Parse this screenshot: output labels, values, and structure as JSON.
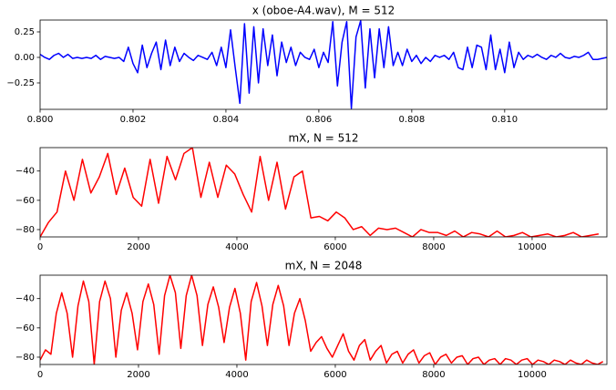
{
  "chart_data": [
    {
      "type": "line",
      "title": "x (oboe-A4.wav), M = 512",
      "color": "#0000ff",
      "xlim": [
        0.8,
        0.8122
      ],
      "ylim": [
        -0.509,
        0.366
      ],
      "xticks": [
        {
          "value": 0.8,
          "label": "0.800"
        },
        {
          "value": 0.802,
          "label": "0.802"
        },
        {
          "value": 0.804,
          "label": "0.804"
        },
        {
          "value": 0.806,
          "label": "0.806"
        },
        {
          "value": 0.808,
          "label": "0.808"
        },
        {
          "value": 0.81,
          "label": "0.810"
        }
      ],
      "yticks": [
        0.25,
        {
          "value": 0,
          "label": "0.00"
        },
        {
          "value": -0.25,
          "label": "−0.25"
        }
      ],
      "x": [
        0.8,
        0.8001,
        0.8002,
        0.8003,
        0.8004,
        0.8005,
        0.8006,
        0.8007,
        0.8008,
        0.8009,
        0.801,
        0.8011,
        0.8012,
        0.8013,
        0.8014,
        0.8015,
        0.8016,
        0.8017,
        0.8018,
        0.8019,
        0.802,
        0.8021,
        0.8022,
        0.8023,
        0.8024,
        0.8025,
        0.8026,
        0.8027,
        0.8028,
        0.8029,
        0.803,
        0.8031,
        0.8032,
        0.8033,
        0.8034,
        0.8035,
        0.8036,
        0.8037,
        0.8038,
        0.8039,
        0.804,
        0.8041,
        0.8042,
        0.8043,
        0.8044,
        0.8045,
        0.8046,
        0.8047,
        0.8048,
        0.8049,
        0.805,
        0.8051,
        0.8052,
        0.8053,
        0.8054,
        0.8055,
        0.8056,
        0.8057,
        0.8058,
        0.8059,
        0.806,
        0.8061,
        0.8062,
        0.8063,
        0.8064,
        0.8065,
        0.8066,
        0.8067,
        0.8068,
        0.8069,
        0.807,
        0.8071,
        0.8072,
        0.8073,
        0.8074,
        0.8075,
        0.8076,
        0.8077,
        0.8078,
        0.8079,
        0.808,
        0.8081,
        0.8082,
        0.8083,
        0.8084,
        0.8085,
        0.8086,
        0.8087,
        0.8088,
        0.8089,
        0.809,
        0.8091,
        0.8092,
        0.8093,
        0.8094,
        0.8095,
        0.8096,
        0.8097,
        0.8098,
        0.8099,
        0.81,
        0.8101,
        0.8102,
        0.8103,
        0.8104,
        0.8105,
        0.8106,
        0.8107,
        0.8108,
        0.8109,
        0.811,
        0.8111,
        0.8112,
        0.8113,
        0.8114,
        0.8115,
        0.8116,
        0.8117,
        0.8118,
        0.8119,
        0.812,
        0.8121,
        0.8122
      ],
      "values": [
        0.03,
        0.0,
        -0.02,
        0.02,
        0.04,
        0.0,
        0.03,
        -0.01,
        0.0,
        -0.01,
        0.0,
        -0.01,
        0.02,
        -0.02,
        0.01,
        0.0,
        -0.01,
        0.0,
        -0.04,
        0.1,
        -0.06,
        -0.15,
        0.12,
        -0.1,
        0.04,
        0.15,
        -0.12,
        0.17,
        -0.08,
        0.1,
        -0.04,
        0.04,
        0.0,
        -0.03,
        0.02,
        0.0,
        -0.02,
        0.05,
        -0.08,
        0.1,
        -0.1,
        0.27,
        -0.1,
        -0.45,
        0.33,
        -0.35,
        0.3,
        -0.25,
        0.28,
        -0.08,
        0.22,
        -0.18,
        0.15,
        -0.05,
        0.1,
        -0.08,
        0.05,
        0.0,
        -0.02,
        0.08,
        -0.1,
        0.05,
        -0.05,
        0.35,
        -0.28,
        0.15,
        0.35,
        -0.5,
        0.2,
        0.36,
        -0.3,
        0.28,
        -0.2,
        0.28,
        -0.1,
        0.3,
        -0.08,
        0.05,
        -0.08,
        0.08,
        -0.04,
        0.02,
        -0.06,
        0.0,
        -0.04,
        0.02,
        0.0,
        0.02,
        -0.02,
        0.05,
        -0.1,
        -0.12,
        0.1,
        -0.1,
        0.12,
        0.1,
        -0.12,
        0.22,
        -0.12,
        0.08,
        -0.15,
        0.15,
        -0.1,
        0.05,
        -0.02,
        0.02,
        0.0,
        0.03,
        0.0,
        -0.02,
        0.02,
        0.0,
        0.04,
        0.0,
        -0.01,
        0.01,
        0.0,
        0.02,
        0.05,
        -0.02,
        -0.02,
        -0.01,
        0.0
      ]
    },
    {
      "type": "line",
      "title": "mX, N = 512",
      "color": "#ff0000",
      "xlim": [
        0,
        11520
      ],
      "ylim": [
        -85,
        -24
      ],
      "xticks": [
        0,
        2000,
        4000,
        6000,
        8000,
        10000
      ],
      "yticks": [
        {
          "value": -40,
          "label": "−40"
        },
        {
          "value": -60,
          "label": "−60"
        },
        {
          "value": -80,
          "label": "−80"
        }
      ],
      "x": [
        0,
        172,
        344,
        516,
        688,
        860,
        1032,
        1204,
        1376,
        1548,
        1720,
        1892,
        2064,
        2236,
        2408,
        2580,
        2752,
        2924,
        3096,
        3268,
        3440,
        3612,
        3784,
        3956,
        4128,
        4300,
        4472,
        4644,
        4816,
        4988,
        5160,
        5332,
        5504,
        5676,
        5848,
        6020,
        6192,
        6364,
        6536,
        6708,
        6880,
        7052,
        7224,
        7396,
        7568,
        7740,
        7912,
        8084,
        8256,
        8428,
        8600,
        8772,
        8944,
        9116,
        9288,
        9460,
        9632,
        9804,
        9976,
        10148,
        10320,
        10492,
        10664,
        10836,
        11008,
        11180,
        11352
      ],
      "values": [
        -85,
        -75,
        -68,
        -40,
        -60,
        -32,
        -55,
        -44,
        -28,
        -56,
        -38,
        -58,
        -64,
        -32,
        -62,
        -30,
        -46,
        -28,
        -24,
        -58,
        -34,
        -58,
        -36,
        -42,
        -56,
        -68,
        -30,
        -60,
        -34,
        -66,
        -44,
        -40,
        -72,
        -71,
        -74,
        -68,
        -72,
        -80,
        -78,
        -84,
        -79,
        -80,
        -79,
        -82,
        -85,
        -80,
        -82,
        -82,
        -84,
        -81,
        -85,
        -82,
        -83,
        -85,
        -81,
        -85,
        -84,
        -82,
        -85,
        -84,
        -83,
        -85,
        -84,
        -82,
        -85,
        -84,
        -83
      ]
    },
    {
      "type": "line",
      "title": "mX, N = 2048",
      "color": "#ff0000",
      "xlim": [
        0,
        11520
      ],
      "ylim": [
        -85,
        -24
      ],
      "xticks": [
        0,
        2000,
        4000,
        6000,
        8000,
        10000
      ],
      "yticks": [
        {
          "value": -40,
          "label": "−40"
        },
        {
          "value": -60,
          "label": "−60"
        },
        {
          "value": -80,
          "label": "−80"
        }
      ],
      "x": [
        0,
        110,
        220,
        330,
        440,
        550,
        660,
        770,
        880,
        990,
        1100,
        1210,
        1320,
        1430,
        1540,
        1650,
        1760,
        1870,
        1980,
        2090,
        2200,
        2310,
        2420,
        2530,
        2640,
        2750,
        2860,
        2970,
        3080,
        3190,
        3300,
        3410,
        3520,
        3630,
        3740,
        3850,
        3960,
        4070,
        4180,
        4290,
        4400,
        4510,
        4620,
        4730,
        4840,
        4950,
        5060,
        5170,
        5280,
        5390,
        5500,
        5610,
        5720,
        5830,
        5940,
        6050,
        6160,
        6270,
        6380,
        6490,
        6600,
        6710,
        6820,
        6930,
        7040,
        7150,
        7260,
        7370,
        7480,
        7590,
        7700,
        7810,
        7920,
        8030,
        8140,
        8250,
        8360,
        8470,
        8580,
        8690,
        8800,
        8910,
        9020,
        9130,
        9240,
        9350,
        9460,
        9570,
        9680,
        9790,
        9900,
        10010,
        10120,
        10230,
        10340,
        10450,
        10560,
        10670,
        10780,
        10890,
        11000,
        11110,
        11220,
        11330,
        11440
      ],
      "values": [
        -82,
        -75,
        -78,
        -50,
        -36,
        -50,
        -80,
        -45,
        -28,
        -42,
        -85,
        -42,
        -28,
        -40,
        -80,
        -48,
        -36,
        -50,
        -75,
        -42,
        -30,
        -44,
        -78,
        -38,
        -24,
        -36,
        -74,
        -38,
        -24,
        -38,
        -72,
        -44,
        -32,
        -46,
        -70,
        -46,
        -33,
        -50,
        -82,
        -42,
        -29,
        -45,
        -72,
        -44,
        -31,
        -45,
        -72,
        -50,
        -40,
        -55,
        -76,
        -70,
        -66,
        -74,
        -80,
        -72,
        -64,
        -76,
        -82,
        -72,
        -68,
        -82,
        -76,
        -72,
        -84,
        -78,
        -76,
        -84,
        -78,
        -75,
        -84,
        -79,
        -77,
        -85,
        -80,
        -78,
        -84,
        -80,
        -79,
        -85,
        -81,
        -80,
        -85,
        -82,
        -81,
        -85,
        -81,
        -82,
        -85,
        -82,
        -81,
        -85,
        -82,
        -83,
        -85,
        -82,
        -83,
        -85,
        -82,
        -84,
        -85,
        -82,
        -84,
        -85,
        -83
      ]
    }
  ]
}
